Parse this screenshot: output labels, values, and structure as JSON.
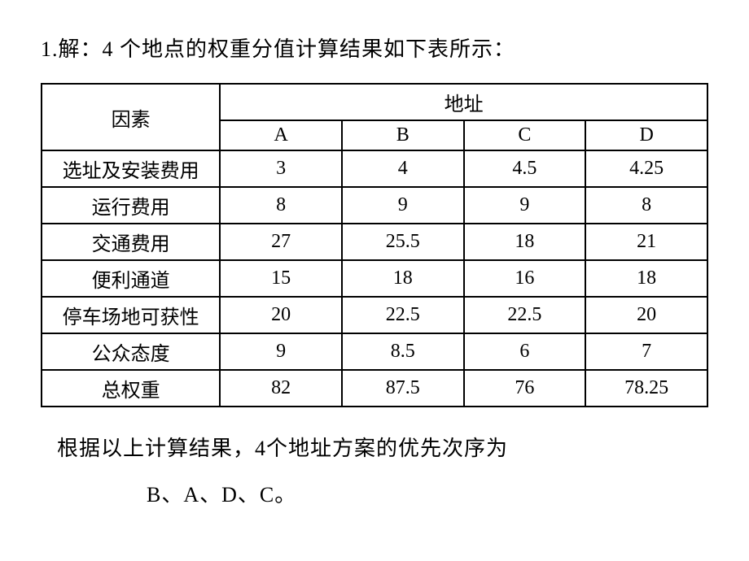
{
  "heading": "1.解：4 个地点的权重分值计算结果如下表所示：",
  "table": {
    "factorHeader": "因素",
    "locationHeader": "地址",
    "columns": [
      "A",
      "B",
      "C",
      "D"
    ],
    "rows": [
      {
        "factor": "选址及安装费用",
        "A": "3",
        "B": "4",
        "C": "4.5",
        "D": "4.25"
      },
      {
        "factor": "运行费用",
        "A": "8",
        "B": "9",
        "C": "9",
        "D": "8"
      },
      {
        "factor": "交通费用",
        "A": "27",
        "B": "25.5",
        "C": "18",
        "D": "21"
      },
      {
        "factor": "便利通道",
        "A": "15",
        "B": "18",
        "C": "16",
        "D": "18"
      },
      {
        "factor": "停车场地可获性",
        "A": "20",
        "B": "22.5",
        "C": "22.5",
        "D": "20"
      },
      {
        "factor": "公众态度",
        "A": "9",
        "B": "8.5",
        "C": "6",
        "D": "7"
      },
      {
        "factor": "总权重",
        "A": "82",
        "B": "87.5",
        "C": "76",
        "D": "78.25"
      }
    ]
  },
  "conclusionText": "根据以上计算结果，4个地址方案的优先次序为",
  "rankingText": "B、A、D、C。",
  "styling": {
    "backgroundColor": "#ffffff",
    "textColor": "#000000",
    "borderColor": "#000000",
    "headingFontSize": 26,
    "tableFontSize": 24,
    "conclusionFontSize": 26
  }
}
